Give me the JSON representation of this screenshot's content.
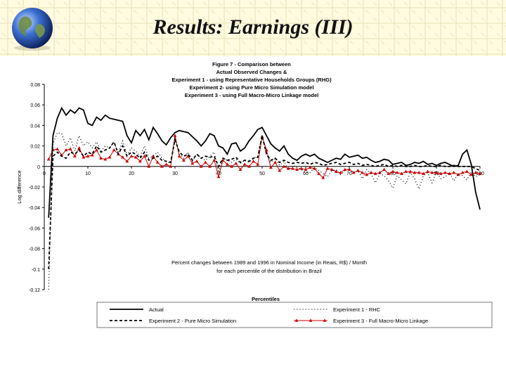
{
  "slide": {
    "title": "Results: Earnings (III)"
  },
  "chart_data": {
    "type": "line",
    "title_lines": [
      "Figure 7 - Comparison between",
      "Actual Observed Changes &",
      "Experiment 1 - using Representative Households Groups (RHG)",
      "Experiment 2- using Pure Micro Simulation model",
      "Experiment 3 - using Full Macro-Micro Linkage model"
    ],
    "note_lines": [
      "Percent changes between 1989 and 1996 in Nominal Income (in Reais, R$) / Month",
      "for each percentile of the distribution in Brazil"
    ],
    "xlabel": "Percentiles",
    "ylabel": "Log difference",
    "xlim": [
      0,
      100
    ],
    "ylim": [
      -0.12,
      0.08
    ],
    "x_ticks": [
      0,
      10,
      20,
      30,
      40,
      50,
      60,
      70,
      80,
      90,
      100
    ],
    "x_tick_labels": [
      "0",
      "10",
      "20",
      "30",
      "40",
      "50",
      "60",
      "70",
      "80",
      "90",
      "100"
    ],
    "y_ticks": [
      0.08,
      0.06,
      0.04,
      0.02,
      0,
      -0.02,
      -0.04,
      -0.06,
      -0.08,
      -0.1,
      -0.12
    ],
    "y_tick_labels": [
      "0.08",
      "0.06",
      "0.04",
      "0.02",
      "0",
      "-0.02",
      "-0.04",
      "-0.06",
      "-0.08",
      "-0.1",
      "-0.12"
    ],
    "grid": false,
    "legend_position": "bottom",
    "series": [
      {
        "name": "Actual",
        "style": "solid",
        "color": "#000000",
        "x": [
          1,
          2,
          3,
          4,
          5,
          6,
          7,
          8,
          9,
          10,
          11,
          12,
          13,
          14,
          15,
          16,
          17,
          18,
          19,
          20,
          21,
          22,
          23,
          24,
          25,
          26,
          27,
          28,
          29,
          30,
          31,
          32,
          33,
          34,
          35,
          36,
          37,
          38,
          39,
          40,
          41,
          42,
          43,
          44,
          45,
          46,
          47,
          48,
          49,
          50,
          51,
          52,
          53,
          54,
          55,
          56,
          57,
          58,
          59,
          60,
          61,
          62,
          63,
          64,
          65,
          66,
          67,
          68,
          69,
          70,
          71,
          72,
          73,
          74,
          75,
          76,
          77,
          78,
          79,
          80,
          81,
          82,
          83,
          84,
          85,
          86,
          87,
          88,
          89,
          90,
          91,
          92,
          93,
          94,
          95,
          96,
          97,
          98,
          99,
          100
        ],
        "y": [
          -0.05,
          0.03,
          0.047,
          0.057,
          0.05,
          0.055,
          0.052,
          0.057,
          0.055,
          0.042,
          0.04,
          0.048,
          0.045,
          0.05,
          0.047,
          0.046,
          0.045,
          0.044,
          0.03,
          0.023,
          0.035,
          0.03,
          0.036,
          0.026,
          0.038,
          0.032,
          0.025,
          0.021,
          0.028,
          0.033,
          0.035,
          0.034,
          0.033,
          0.029,
          0.025,
          0.02,
          0.025,
          0.032,
          0.03,
          0.02,
          0.018,
          0.012,
          0.022,
          0.023,
          0.015,
          0.018,
          0.025,
          0.03,
          0.036,
          0.038,
          0.03,
          0.022,
          0.018,
          0.015,
          0.02,
          0.012,
          0.008,
          0.006,
          0.01,
          0.012,
          0.01,
          0.012,
          0.008,
          0.006,
          0.004,
          0.006,
          0.008,
          0.007,
          0.012,
          0.009,
          0.01,
          0.011,
          0.008,
          0.009,
          0.006,
          0.004,
          0.005,
          0.007,
          0.006,
          0.002,
          0.003,
          0.004,
          0.001,
          0.002,
          0.004,
          0.003,
          0.005,
          0.002,
          0.003,
          0.001,
          0.003,
          0.004,
          0.002,
          0.0,
          0.001,
          0.012,
          0.016,
          0.002,
          -0.025,
          -0.042
        ]
      },
      {
        "name": "Experiment 1 - RHC",
        "style": "dotted",
        "color": "#000000",
        "x": [
          1,
          2,
          3,
          4,
          5,
          6,
          7,
          8,
          9,
          10,
          11,
          12,
          13,
          14,
          15,
          16,
          17,
          18,
          19,
          20,
          21,
          22,
          23,
          24,
          25,
          26,
          27,
          28,
          29,
          30,
          31,
          32,
          33,
          34,
          35,
          36,
          37,
          38,
          39,
          40,
          41,
          42,
          43,
          44,
          45,
          46,
          47,
          48,
          49,
          50,
          51,
          52,
          53,
          54,
          55,
          56,
          57,
          58,
          59,
          60,
          61,
          62,
          63,
          64,
          65,
          66,
          67,
          68,
          69,
          70,
          71,
          72,
          73,
          74,
          75,
          76,
          77,
          78,
          79,
          80,
          81,
          82,
          83,
          84,
          85,
          86,
          87,
          88,
          89,
          90,
          91,
          92,
          93,
          94,
          95,
          96,
          97,
          98,
          99,
          100
        ],
        "y": [
          -0.12,
          0.022,
          0.033,
          0.032,
          0.02,
          0.028,
          0.015,
          0.03,
          0.02,
          0.024,
          0.018,
          0.024,
          0.015,
          0.02,
          0.018,
          0.024,
          0.013,
          0.025,
          0.011,
          0.018,
          0.015,
          0.01,
          0.02,
          0.008,
          0.01,
          0.014,
          0.008,
          0.005,
          0.003,
          0.029,
          0.012,
          0.008,
          0.014,
          0.005,
          0.012,
          0.008,
          0.006,
          0.01,
          0.014,
          -0.006,
          0.008,
          0.006,
          0.004,
          0.007,
          0.003,
          0.006,
          0.004,
          0.008,
          0.01,
          0.031,
          0.012,
          0.004,
          0.008,
          0.001,
          0.005,
          -0.003,
          0.001,
          -0.001,
          -0.003,
          -0.006,
          -0.006,
          -0.001,
          -0.004,
          -0.007,
          -0.01,
          -0.004,
          -0.003,
          -0.008,
          -0.004,
          -0.002,
          -0.006,
          -0.004,
          -0.012,
          -0.003,
          -0.007,
          -0.016,
          -0.007,
          -0.009,
          -0.014,
          -0.021,
          -0.009,
          -0.013,
          -0.017,
          -0.006,
          -0.012,
          -0.022,
          -0.009,
          -0.006,
          -0.016,
          -0.005,
          -0.012,
          -0.01,
          -0.006,
          -0.014,
          -0.007,
          -0.009,
          -0.013,
          -0.005,
          -0.01,
          -0.008
        ]
      },
      {
        "name": "Experiment 2 - Pure Micro Simulation",
        "style": "dashed",
        "color": "#000000",
        "x": [
          1,
          2,
          3,
          4,
          5,
          6,
          7,
          8,
          9,
          10,
          11,
          12,
          13,
          14,
          15,
          16,
          17,
          18,
          19,
          20,
          21,
          22,
          23,
          24,
          25,
          26,
          27,
          28,
          29,
          30,
          31,
          32,
          33,
          34,
          35,
          36,
          37,
          38,
          39,
          40,
          41,
          42,
          43,
          44,
          45,
          46,
          47,
          48,
          49,
          50,
          51,
          52,
          53,
          54,
          55,
          56,
          57,
          58,
          59,
          60,
          61,
          62,
          63,
          64,
          65,
          66,
          67,
          68,
          69,
          70,
          71,
          72,
          73,
          74,
          75,
          76,
          77,
          78,
          79,
          80,
          81,
          82,
          83,
          84,
          85,
          86,
          87,
          88,
          89,
          90,
          91,
          92,
          93,
          94,
          95,
          96,
          97,
          98,
          99,
          100
        ],
        "y": [
          -0.1,
          0.01,
          0.014,
          0.01,
          0.008,
          0.014,
          0.012,
          0.016,
          0.01,
          0.014,
          0.012,
          0.02,
          0.014,
          0.016,
          0.018,
          0.024,
          0.012,
          0.02,
          0.01,
          0.014,
          0.012,
          0.008,
          0.014,
          0.006,
          0.008,
          0.01,
          0.006,
          0.005,
          0.004,
          0.026,
          0.014,
          0.01,
          0.012,
          0.006,
          0.012,
          0.008,
          0.01,
          0.009,
          0.01,
          0.0,
          0.008,
          0.006,
          0.007,
          0.009,
          0.004,
          0.006,
          0.005,
          0.008,
          0.009,
          0.03,
          0.012,
          0.006,
          0.008,
          0.004,
          0.006,
          0.004,
          0.003,
          0.004,
          0.003,
          0.004,
          0.002,
          0.004,
          0.003,
          0.001,
          0.002,
          0.003,
          0.004,
          0.002,
          0.003,
          0.004,
          0.002,
          0.003,
          0.001,
          0.002,
          0.001,
          0.0,
          0.001,
          0.002,
          0.0,
          0.001,
          0.0,
          0.001,
          0.0,
          0.0,
          0.001,
          0.0,
          0.0,
          0.001,
          0.0,
          0.0,
          0.001,
          0.0,
          0.0,
          0.001,
          0.0,
          0.0,
          0.0,
          0.0,
          -0.002,
          -0.004
        ]
      },
      {
        "name": "Experiment 3 - Full Macro-Micro Linkage",
        "style": "triangles",
        "color": "#cc0000",
        "x": [
          1,
          2,
          3,
          4,
          5,
          6,
          7,
          8,
          9,
          10,
          11,
          12,
          13,
          14,
          15,
          16,
          17,
          18,
          19,
          20,
          21,
          22,
          23,
          24,
          25,
          26,
          27,
          28,
          29,
          30,
          31,
          32,
          33,
          34,
          35,
          36,
          37,
          38,
          39,
          40,
          41,
          42,
          43,
          44,
          45,
          46,
          47,
          48,
          49,
          50,
          51,
          52,
          53,
          54,
          55,
          56,
          57,
          58,
          59,
          60,
          61,
          62,
          63,
          64,
          65,
          66,
          67,
          68,
          69,
          70,
          71,
          72,
          73,
          74,
          75,
          76,
          77,
          78,
          79,
          80,
          81,
          82,
          83,
          84,
          85,
          86,
          87,
          88,
          89,
          90,
          91,
          92,
          93,
          94,
          95,
          96,
          97,
          98,
          99,
          100
        ],
        "y": [
          0.007,
          0.016,
          0.017,
          0.011,
          0.016,
          0.017,
          0.01,
          0.018,
          0.009,
          0.01,
          0.011,
          0.016,
          0.008,
          0.007,
          0.009,
          0.016,
          0.012,
          0.009,
          0.005,
          0.01,
          0.009,
          0.005,
          0.01,
          0.0,
          0.01,
          0.004,
          0.0,
          0.002,
          0.0,
          0.03,
          0.01,
          0.006,
          0.01,
          0.003,
          0.005,
          0.0,
          0.004,
          0.0,
          0.006,
          -0.01,
          0.006,
          0.002,
          0.0,
          0.003,
          -0.003,
          0.002,
          0.0,
          0.005,
          0.002,
          0.029,
          0.016,
          -0.001,
          0.004,
          -0.004,
          0.0,
          -0.002,
          -0.002,
          -0.003,
          -0.002,
          -0.003,
          -0.001,
          -0.002,
          -0.007,
          -0.011,
          -0.002,
          -0.003,
          -0.005,
          -0.006,
          -0.003,
          -0.003,
          -0.006,
          -0.004,
          -0.006,
          -0.008,
          -0.006,
          -0.007,
          -0.006,
          -0.003,
          -0.007,
          -0.005,
          -0.006,
          -0.007,
          -0.005,
          -0.005,
          -0.006,
          -0.006,
          -0.007,
          -0.005,
          -0.006,
          -0.006,
          -0.007,
          -0.006,
          -0.007,
          -0.006,
          -0.008,
          -0.006,
          -0.005,
          -0.008,
          -0.006,
          -0.007
        ]
      }
    ]
  }
}
